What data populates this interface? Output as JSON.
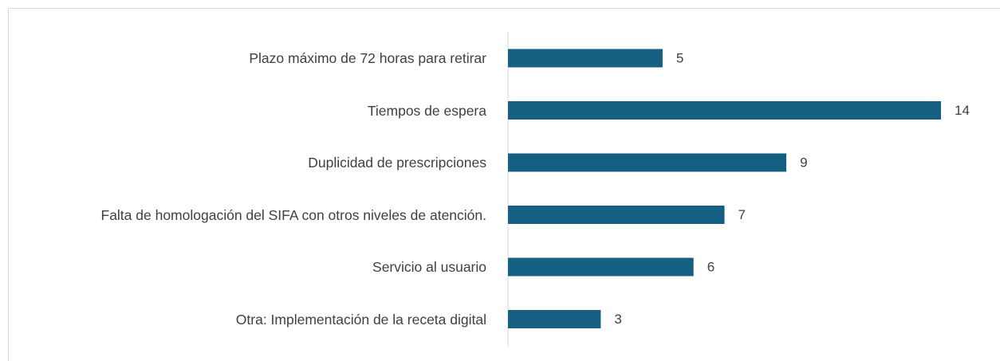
{
  "chart_data": {
    "type": "barh",
    "categories": [
      "Plazo máximo de 72 horas para retirar",
      "Tiempos de espera",
      "Duplicidad de prescripciones",
      "Falta de homologación del SIFA con otros niveles de atención.",
      "Servicio al usuario",
      "Otra: Implementación de la receta digital"
    ],
    "values": [
      5,
      14,
      9,
      7,
      6,
      3
    ],
    "color": "#156082"
  }
}
